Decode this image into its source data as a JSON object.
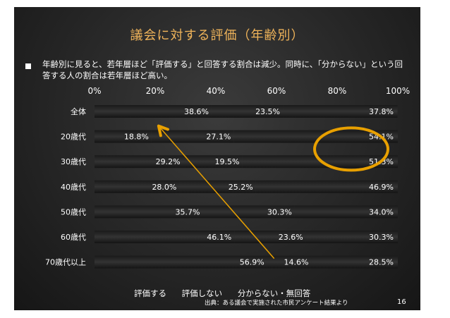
{
  "slide": {
    "title": "議会に対する評価（年齢別）",
    "bullet": "年齢別に見ると、若年層ほど「評価する」と回答する割合は減少。同時に、「分からない」という回答する人の割合は若年層ほど高い。",
    "legend": [
      "評価する",
      "評価しない",
      "分からない・無回答"
    ],
    "source": "出典：ある議会で実施された市民アンケート結果より",
    "page_number": "16"
  },
  "chart_data": {
    "type": "bar",
    "orientation": "horizontal",
    "stacked": true,
    "categories": [
      "全体",
      "20歳代",
      "30歳代",
      "40歳代",
      "50歳代",
      "60歳代",
      "70歳代以上"
    ],
    "series": [
      {
        "name": "評価する",
        "values": [
          38.6,
          18.8,
          29.2,
          28.0,
          35.7,
          46.1,
          56.9
        ]
      },
      {
        "name": "評価しない",
        "values": [
          23.5,
          27.1,
          19.5,
          25.2,
          30.3,
          23.6,
          14.6
        ]
      },
      {
        "name": "分からない・無回答",
        "values": [
          37.8,
          54.1,
          51.3,
          46.9,
          34.0,
          30.3,
          28.5
        ]
      }
    ],
    "value_labels": [
      [
        "38.6%",
        "23.5%",
        "37.8%"
      ],
      [
        "18.8%",
        "27.1%",
        "54.1%"
      ],
      [
        "29.2%",
        "19.5%",
        "51.3%"
      ],
      [
        "28.0%",
        "25.2%",
        "46.9%"
      ],
      [
        "35.7%",
        "30.3%",
        "34.0%"
      ],
      [
        "46.1%",
        "23.6%",
        "30.3%"
      ],
      [
        "56.9%",
        "14.6%",
        "28.5%"
      ]
    ],
    "xlim": [
      0,
      100
    ],
    "x_ticks": [
      "0%",
      "20%",
      "40%",
      "60%",
      "80%",
      "100%"
    ],
    "legend_position": "bottom",
    "highlight_categories": [
      "20歳代",
      "30歳代"
    ],
    "highlight_color": "#e8a000",
    "arrow": {
      "from": "70歳代以上",
      "to": "20歳代",
      "color": "#e8a000"
    }
  }
}
